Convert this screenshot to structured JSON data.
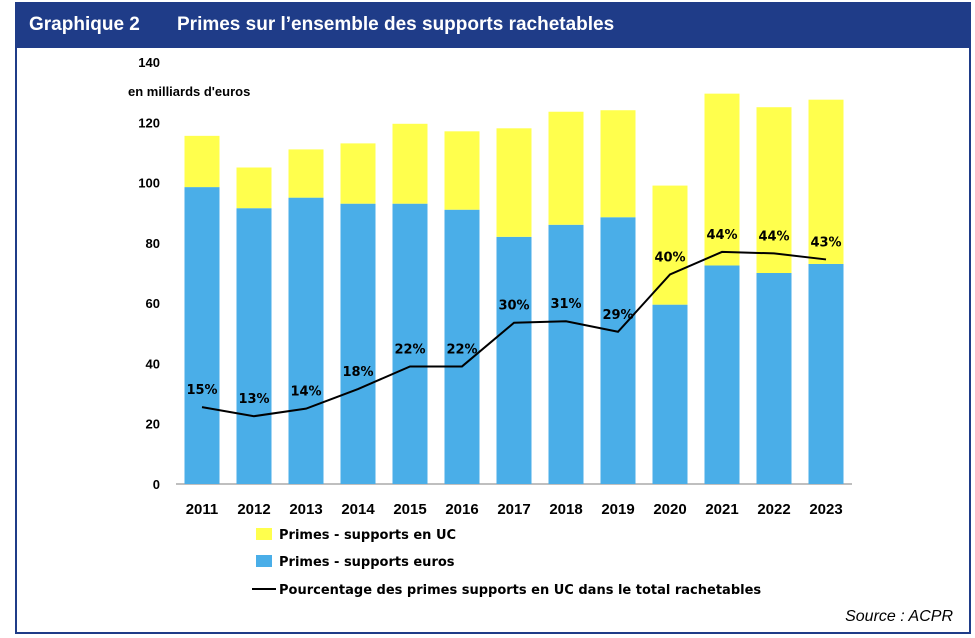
{
  "header": {
    "number": "Graphique 2",
    "title": "Primes sur l’ensemble des supports rachetables"
  },
  "source": "Source : ACPR",
  "colors": {
    "header_bg": "#1f3c88",
    "uc": "#ffff4d",
    "euros": "#4aaee8",
    "line": "#000000"
  },
  "chart_data": {
    "type": "bar",
    "stacked": true,
    "title": "Primes sur l’ensemble des supports rachetables",
    "ylabel": "en milliards d'euros",
    "ylim": [
      0,
      140
    ],
    "yticks": [
      0,
      20,
      40,
      60,
      80,
      100,
      120,
      140
    ],
    "grid": false,
    "categories": [
      "2011",
      "2012",
      "2013",
      "2014",
      "2015",
      "2016",
      "2017",
      "2018",
      "2019",
      "2020",
      "2021",
      "2022",
      "2023"
    ],
    "series": [
      {
        "name": "Primes - supports euros",
        "values": [
          98.5,
          91.5,
          95,
          93,
          93,
          91,
          82,
          86,
          88.5,
          59.5,
          72.5,
          70,
          73
        ]
      },
      {
        "name": "Primes - supports en UC",
        "values": [
          17,
          13.5,
          16,
          20,
          26.5,
          26,
          36,
          37.5,
          35.5,
          39.5,
          57,
          55,
          54.5
        ]
      }
    ],
    "line_series": {
      "name": "Pourcentage des primes supports en UC dans le total rachetables",
      "labels": [
        "15%",
        "13%",
        "14%",
        "18%",
        "22%",
        "22%",
        "30%",
        "31%",
        "29%",
        "40%",
        "44%",
        "44%",
        "43%"
      ],
      "plot_values": [
        25.5,
        22.5,
        25,
        31.5,
        39,
        39,
        53.5,
        54,
        50.5,
        69.5,
        77,
        76.5,
        74.5
      ]
    },
    "legend": {
      "position": "bottom",
      "entries": [
        {
          "label": "Primes - supports en UC",
          "kind": "swatch",
          "color": "#ffff4d"
        },
        {
          "label": "Primes - supports euros",
          "kind": "swatch",
          "color": "#4aaee8"
        },
        {
          "label": "Pourcentage des primes supports en UC dans le total rachetables",
          "kind": "line",
          "color": "#000000"
        }
      ]
    }
  }
}
